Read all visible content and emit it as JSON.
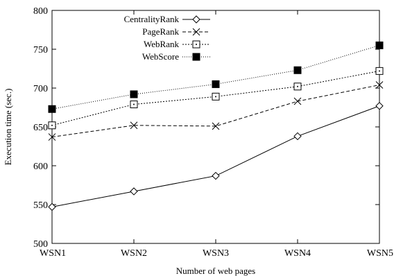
{
  "chart_data": {
    "type": "line",
    "xlabel": "Number of web pages",
    "ylabel": "Execution time (sec.)",
    "categories": [
      "WSN1",
      "WSN2",
      "WSN3",
      "WSN4",
      "WSN5"
    ],
    "ylim": [
      500,
      800
    ],
    "yticks": [
      500,
      550,
      600,
      650,
      700,
      750,
      800
    ],
    "grid": false,
    "legend_position": "top-left",
    "series": [
      {
        "name": "CentralityRank",
        "marker": "diamond-open",
        "line": "solid",
        "values": [
          547,
          567,
          587,
          638,
          677
        ]
      },
      {
        "name": "PageRank",
        "marker": "cross",
        "line": "dashed",
        "values": [
          637,
          652,
          651,
          683,
          704
        ]
      },
      {
        "name": "WebRank",
        "marker": "square-open-dot",
        "line": "dotted",
        "values": [
          652,
          679,
          689,
          702,
          722
        ]
      },
      {
        "name": "WebScore",
        "marker": "square-filled",
        "line": "fine-dotted",
        "values": [
          673,
          692,
          705,
          723,
          755
        ]
      }
    ]
  }
}
